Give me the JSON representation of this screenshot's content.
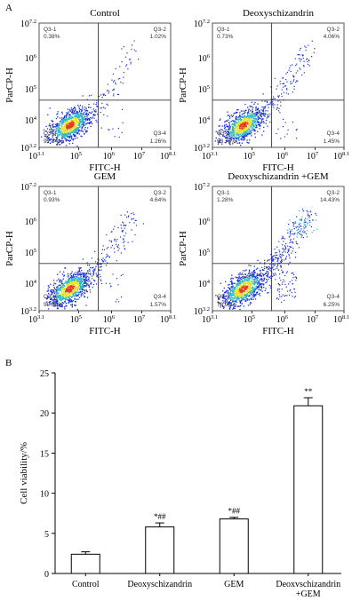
{
  "panel_a": {
    "letter": "A",
    "x_axis_label": "FITC-H",
    "y_axis_label": "ParCP-H",
    "x_ticks": [
      {
        "base": "10",
        "exp": "3.1"
      },
      {
        "base": "10",
        "exp": "5"
      },
      {
        "base": "10",
        "exp": "6"
      },
      {
        "base": "10",
        "exp": "7"
      },
      {
        "base": "10",
        "exp": "8.1"
      }
    ],
    "y_ticks": [
      {
        "base": "10",
        "exp": "7.2"
      },
      {
        "base": "10",
        "exp": "6"
      },
      {
        "base": "10",
        "exp": "5"
      },
      {
        "base": "10",
        "exp": "4"
      },
      {
        "base": "10",
        "exp": "3.2"
      }
    ],
    "plots": [
      {
        "title": "Control",
        "quadrants": [
          {
            "id": "Q3-1",
            "pct": "0.38%"
          },
          {
            "id": "Q3-2",
            "pct": "1.02%"
          },
          {
            "id": "Q3-3",
            "pct": "97.34%"
          },
          {
            "id": "Q3-4",
            "pct": "1.26%"
          }
        ]
      },
      {
        "title": "Deoxyschizandrin",
        "quadrants": [
          {
            "id": "Q3-1",
            "pct": "0.73%"
          },
          {
            "id": "Q3-2",
            "pct": "4.06%"
          },
          {
            "id": "Q3-3",
            "pct": "93.76%"
          },
          {
            "id": "Q3-4",
            "pct": "1.45%"
          }
        ]
      },
      {
        "title": "GEM",
        "quadrants": [
          {
            "id": "Q3-1",
            "pct": "0.93%"
          },
          {
            "id": "Q3-2",
            "pct": "4.64%"
          },
          {
            "id": "Q3-3",
            "pct": "92.86%"
          },
          {
            "id": "Q3-4",
            "pct": "1.57%"
          }
        ]
      },
      {
        "title": "Deoxyschizandrin +GEM",
        "quadrants": [
          {
            "id": "Q3-1",
            "pct": "1.28%"
          },
          {
            "id": "Q3-2",
            "pct": "14.43%"
          },
          {
            "id": "Q3-3",
            "pct": "78.04%"
          },
          {
            "id": "Q3-4",
            "pct": "6.25%"
          }
        ]
      }
    ]
  },
  "colors": {
    "density_low": "#1a2fd1",
    "density_mid": "#2bb7c9",
    "density_high": "#e8e02a",
    "density_peak": "#e63a1f"
  },
  "chart_data": {
    "type": "bar",
    "panel_letter": "B",
    "categories": [
      "Control",
      "Deoxyschizandrin",
      "GEM",
      "Deoxvschizandrin\n+GEM"
    ],
    "values": [
      2.4,
      5.8,
      6.8,
      20.9
    ],
    "errors": [
      0.3,
      0.5,
      0.2,
      1.0
    ],
    "annotations": [
      "",
      "*##",
      "*##",
      "**"
    ],
    "ylabel": "Cell viability/%",
    "xlabel": "",
    "ylim": [
      0,
      25
    ],
    "yticks": [
      0,
      5,
      10,
      15,
      20,
      25
    ],
    "grid": false
  }
}
